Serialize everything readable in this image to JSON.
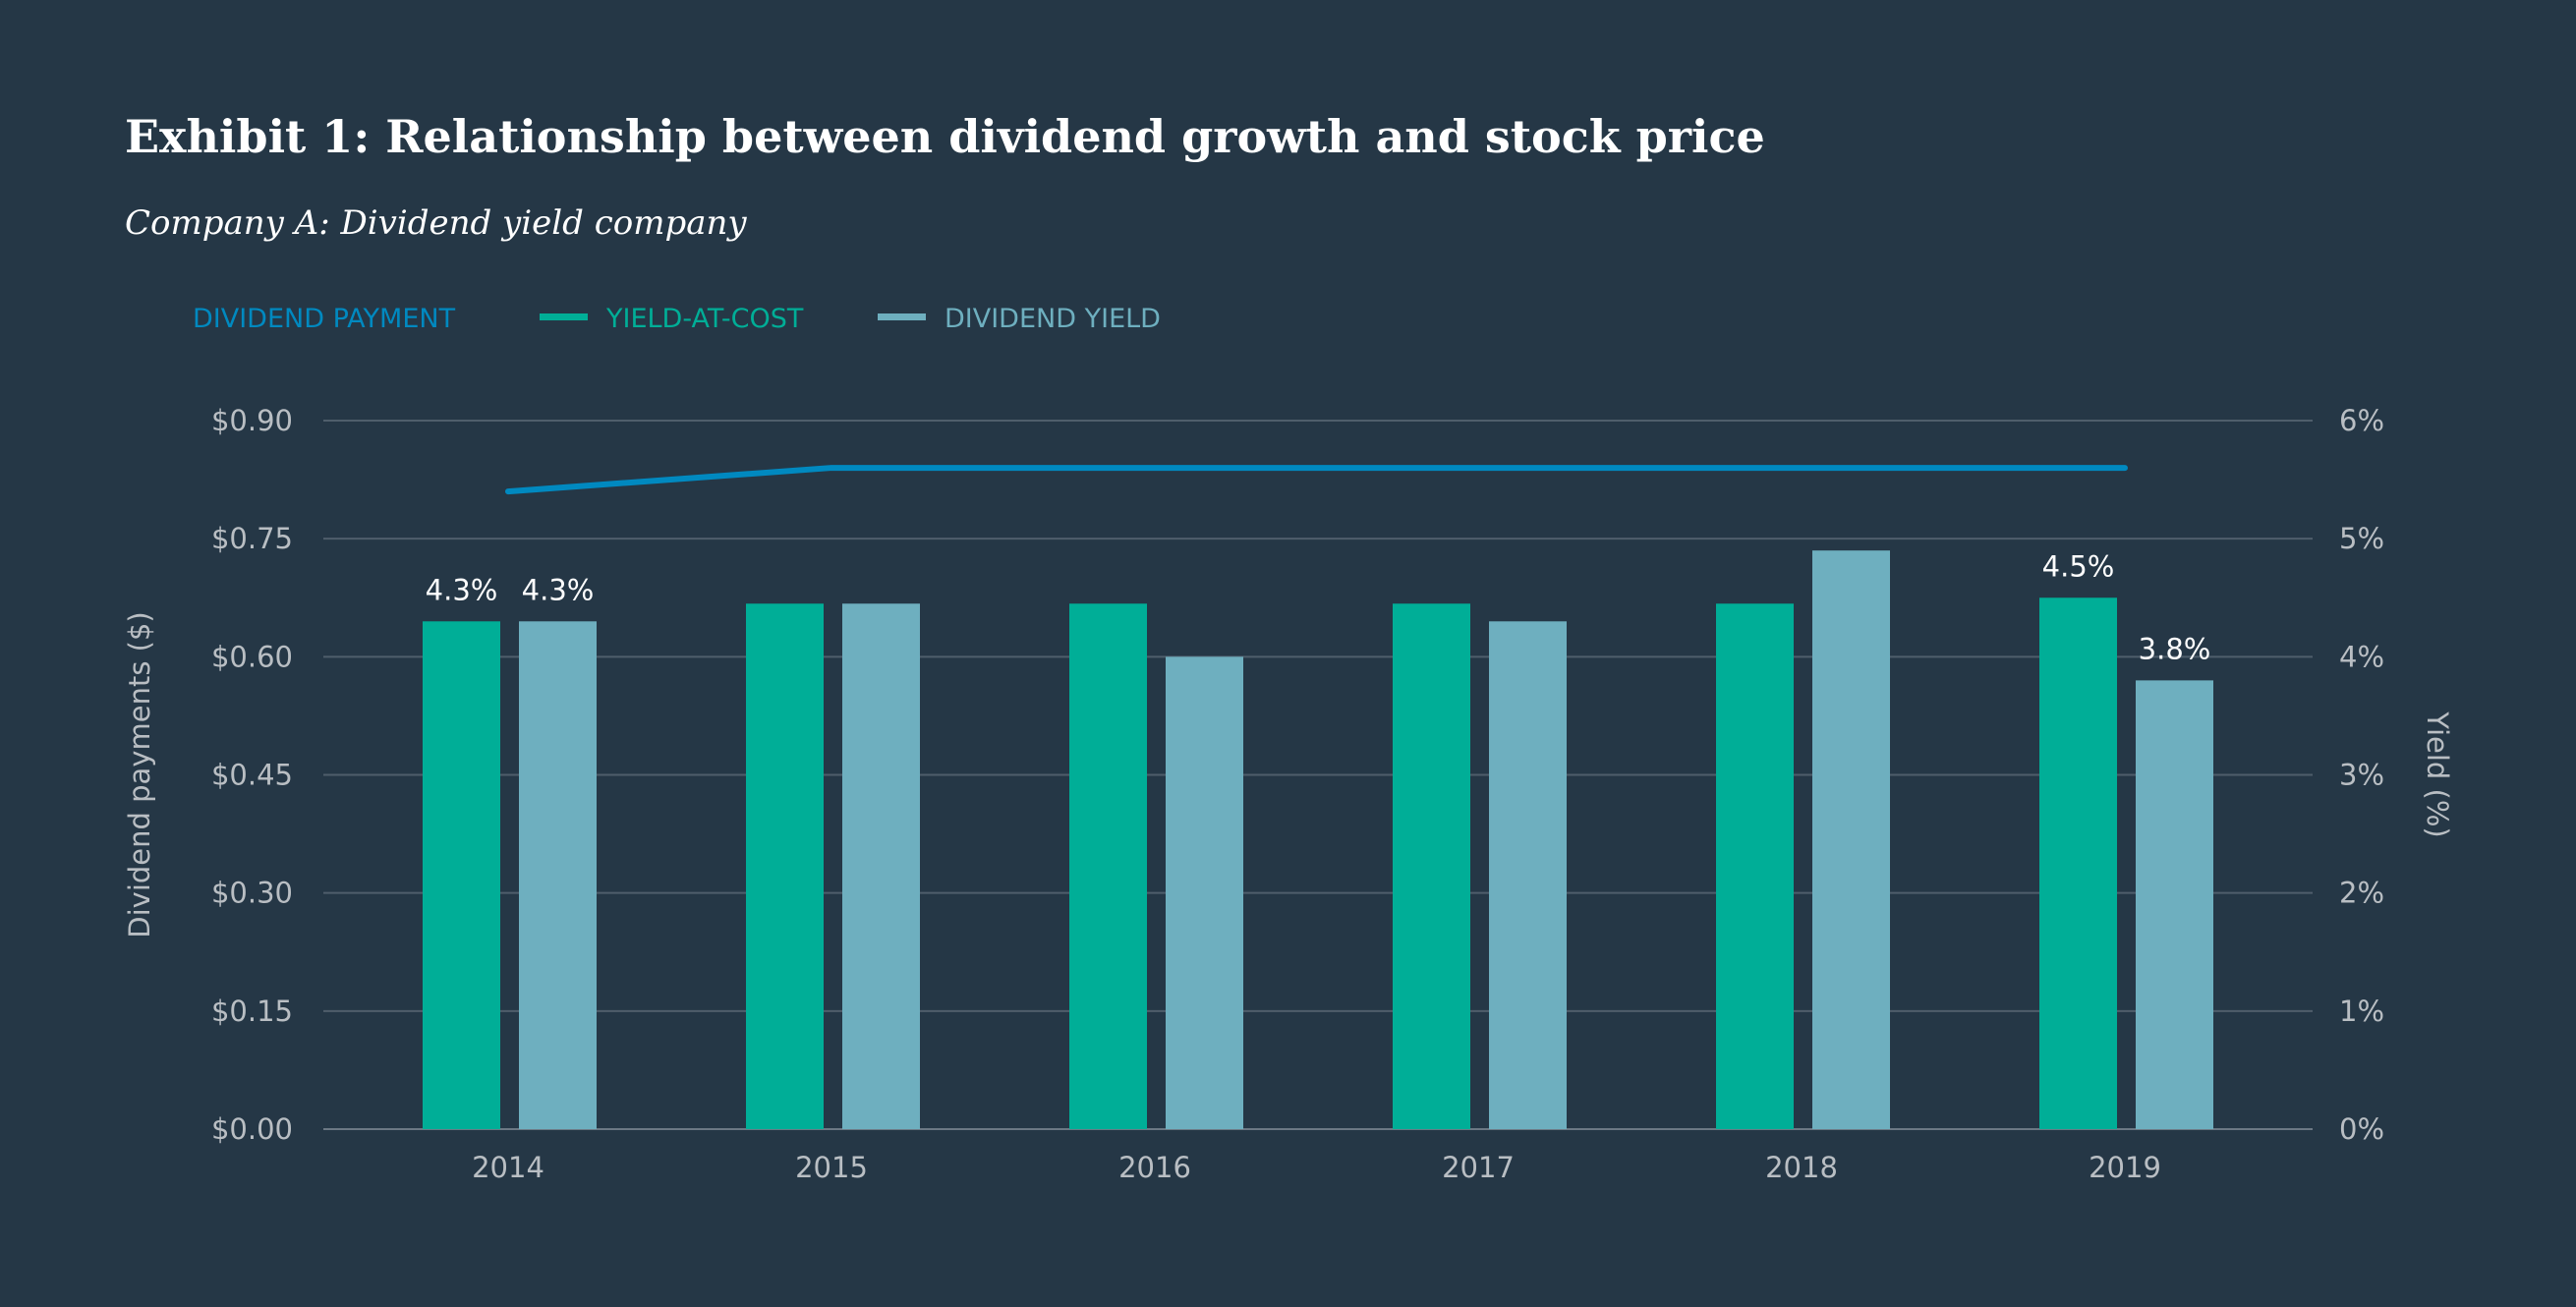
{
  "title": "Exhibit 1: Relationship between dividend growth and stock price",
  "subtitle": "Company A: Dividend yield company",
  "chart_data": {
    "type": "bar",
    "categories": [
      "2014",
      "2015",
      "2016",
      "2017",
      "2018",
      "2019"
    ],
    "series": [
      {
        "name": "DIVIDEND PAYMENT",
        "type": "line",
        "axis": "left",
        "color": "#0089c0",
        "values": [
          0.81,
          0.84,
          0.84,
          0.84,
          0.84,
          0.84
        ]
      },
      {
        "name": "YIELD-AT-COST",
        "type": "bar",
        "axis": "right",
        "color": "#00ae97",
        "values": [
          4.3,
          4.45,
          4.45,
          4.45,
          4.45,
          4.5
        ]
      },
      {
        "name": "DIVIDEND YIELD",
        "type": "bar",
        "axis": "right",
        "color": "#6eafbf",
        "values": [
          4.3,
          4.45,
          4.0,
          4.3,
          4.9,
          3.8
        ]
      }
    ],
    "data_labels": [
      {
        "series": 1,
        "index": 0,
        "text": "4.3%"
      },
      {
        "series": 2,
        "index": 0,
        "text": "4.3%"
      },
      {
        "series": 1,
        "index": 5,
        "text": "4.5%"
      },
      {
        "series": 2,
        "index": 5,
        "text": "3.8%"
      }
    ],
    "ylabel": "Dividend payments ($)",
    "y2label": "Yield (%)",
    "ylim": [
      0,
      0.9
    ],
    "y2lim": [
      0,
      6
    ],
    "yticks": [
      "$0.00",
      "$0.15",
      "$0.30",
      "$0.45",
      "$0.60",
      "$0.75",
      "$0.90"
    ],
    "y2ticks": [
      "0%",
      "1%",
      "2%",
      "3%",
      "4%",
      "5%",
      "6%"
    ],
    "grid": true,
    "legend": "top-left"
  }
}
